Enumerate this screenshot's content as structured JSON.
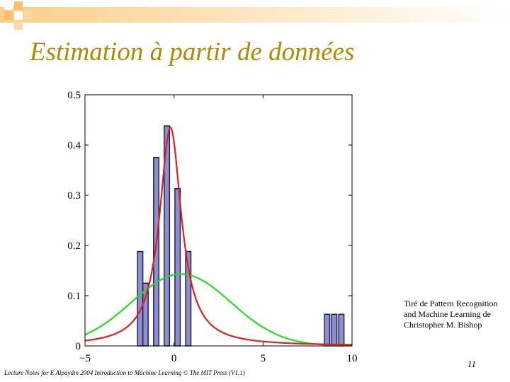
{
  "slide": {
    "title": "Estimation à partir de données",
    "credit_lines": [
      "Tiré de Pattern Recognition",
      "and Machine Learning de",
      "Christopher M. Bishop"
    ],
    "page_number": "11",
    "footer": "Lecture Notes for E Alpaydın 2004 Introduction to Machine Learning © The MIT Press (V1.1)"
  },
  "colors": {
    "title": "#b08a00",
    "bar_fill": "#8c8fcc",
    "bar_stroke": "#1a1a40",
    "red_curve": "#e02020",
    "green_curve": "#22dd22",
    "deco_orange": "#f5a623"
  },
  "chart_data": {
    "type": "bar",
    "title": "",
    "xlabel": "",
    "ylabel": "",
    "xlim": [
      -5,
      10
    ],
    "ylim": [
      0,
      0.5
    ],
    "xticks": [
      -5,
      0,
      5,
      10
    ],
    "yticks": [
      0,
      0.1,
      0.2,
      0.3,
      0.4,
      0.5
    ],
    "xtick_labels": [
      "−5",
      "0",
      "5",
      "10"
    ],
    "ytick_labels": [
      "0",
      "0.1",
      "0.2",
      "0.3",
      "0.4",
      "0.5"
    ],
    "grid": false,
    "bin_width": 0.3,
    "histogram": {
      "centers": [
        -1.9,
        -1.6,
        -1.0,
        -0.4,
        0.2,
        0.8,
        8.6,
        9.0,
        9.4
      ],
      "values": [
        0.188,
        0.125,
        0.375,
        0.438,
        0.313,
        0.188,
        0.063,
        0.063,
        0.063
      ]
    },
    "curves": [
      {
        "color": "red",
        "description": "robust fit",
        "peak_x": -0.2,
        "peak_y": 0.435
      },
      {
        "color": "green",
        "description": "gaussian fit",
        "mean": 0.4,
        "std": 2.8,
        "peak_y": 0.143
      }
    ]
  }
}
